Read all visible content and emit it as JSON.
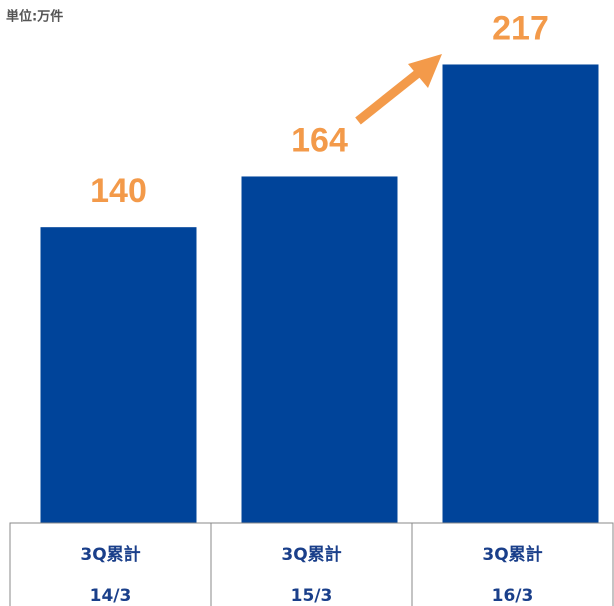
{
  "chart_data": {
    "type": "bar",
    "unit_label": "単位:万件",
    "categories": [
      "14/3",
      "15/3",
      "16/3"
    ],
    "category_notes": [
      "3Q累計",
      "3Q累計",
      "3Q累計"
    ],
    "values": [
      140,
      164,
      217
    ],
    "color": "#00449a",
    "label_color": "#f39a4a"
  }
}
